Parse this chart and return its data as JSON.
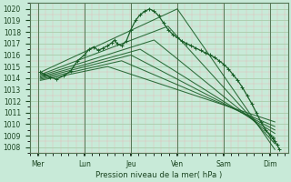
{
  "title": "Pression niveau de la mer( hPa )",
  "bg_color": "#c8ead8",
  "grid_minor_color": "#e8b8b8",
  "grid_major_color": "#aaccaa",
  "line_color": "#1a5e28",
  "ylim": [
    1007.5,
    1020.5
  ],
  "yticks": [
    1008,
    1009,
    1010,
    1011,
    1012,
    1013,
    1014,
    1015,
    1016,
    1017,
    1018,
    1019,
    1020
  ],
  "days": [
    "Mer",
    "Lun",
    "Jeu",
    "Ven",
    "Sam",
    "Dim"
  ],
  "day_positions": [
    0,
    1,
    2,
    3,
    4,
    5
  ],
  "fan_lines": [
    {
      "x": [
        0.05,
        5.1
      ],
      "y": [
        1014.5,
        1007.8
      ]
    },
    {
      "x": [
        0.05,
        5.1
      ],
      "y": [
        1014.3,
        1008.3
      ]
    },
    {
      "x": [
        0.05,
        5.1
      ],
      "y": [
        1014.2,
        1008.8
      ]
    },
    {
      "x": [
        0.05,
        5.1
      ],
      "y": [
        1014.1,
        1009.2
      ]
    },
    {
      "x": [
        0.05,
        5.1
      ],
      "y": [
        1014.0,
        1009.5
      ]
    },
    {
      "x": [
        0.05,
        5.1
      ],
      "y": [
        1013.9,
        1009.8
      ]
    },
    {
      "x": [
        0.05,
        5.1
      ],
      "y": [
        1013.8,
        1010.2
      ]
    }
  ],
  "upper_fan_lines": [
    {
      "x": [
        0.05,
        3.0,
        5.1
      ],
      "y": [
        1014.5,
        1020.0,
        1007.8
      ]
    },
    {
      "x": [
        0.05,
        2.8,
        5.1
      ],
      "y": [
        1014.3,
        1018.5,
        1008.3
      ]
    },
    {
      "x": [
        0.05,
        2.5,
        5.1
      ],
      "y": [
        1014.2,
        1017.3,
        1008.8
      ]
    },
    {
      "x": [
        0.05,
        2.2,
        5.1
      ],
      "y": [
        1014.1,
        1016.5,
        1009.2
      ]
    },
    {
      "x": [
        0.05,
        2.0,
        5.1
      ],
      "y": [
        1014.0,
        1016.0,
        1009.5
      ]
    },
    {
      "x": [
        0.05,
        1.8,
        5.1
      ],
      "y": [
        1013.9,
        1015.5,
        1009.8
      ]
    },
    {
      "x": [
        0.05,
        1.5,
        5.1
      ],
      "y": [
        1013.8,
        1015.0,
        1010.2
      ]
    }
  ],
  "main_line_x": [
    0.05,
    0.15,
    0.25,
    0.4,
    0.55,
    0.7,
    0.85,
    1.0,
    1.1,
    1.2,
    1.3,
    1.4,
    1.5,
    1.6,
    1.65,
    1.7,
    1.8,
    1.9,
    2.0,
    2.1,
    2.2,
    2.3,
    2.4,
    2.5,
    2.6,
    2.7,
    2.8,
    2.9,
    3.0,
    3.1,
    3.2,
    3.3,
    3.4,
    3.5,
    3.6,
    3.7,
    3.8,
    3.9,
    4.0,
    4.1,
    4.2,
    4.3,
    4.4,
    4.5,
    4.6,
    4.7,
    4.8,
    4.9,
    5.0,
    5.05,
    5.1,
    5.15,
    5.2
  ],
  "main_line_y": [
    1014.5,
    1014.3,
    1014.1,
    1013.9,
    1014.2,
    1014.6,
    1015.5,
    1016.0,
    1016.5,
    1016.7,
    1016.4,
    1016.6,
    1016.8,
    1017.1,
    1017.3,
    1017.0,
    1016.8,
    1017.2,
    1018.2,
    1019.0,
    1019.5,
    1019.8,
    1020.0,
    1019.8,
    1019.4,
    1018.8,
    1018.2,
    1017.8,
    1017.5,
    1017.2,
    1017.0,
    1016.8,
    1016.6,
    1016.4,
    1016.2,
    1016.0,
    1015.8,
    1015.5,
    1015.2,
    1014.8,
    1014.3,
    1013.8,
    1013.2,
    1012.5,
    1011.8,
    1011.0,
    1010.2,
    1009.5,
    1009.0,
    1008.8,
    1008.5,
    1008.2,
    1007.8
  ]
}
